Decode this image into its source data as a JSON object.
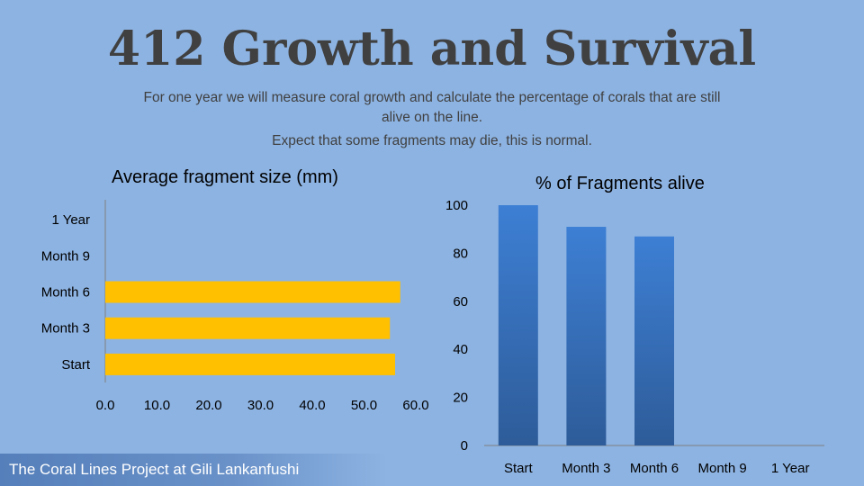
{
  "slide": {
    "title": "412 Growth and Survival",
    "subtitle": "For one year we will measure coral growth and calculate the percentage of corals that are still alive on the line.",
    "note": "Expect that some fragments may die, this is normal.",
    "footer": "The Coral Lines Project at Gili Lankanfushi"
  },
  "colors": {
    "background": "#8db3e2",
    "bar_size": "#ffc000",
    "bar_alive_top": "#3d7fd4",
    "bar_alive_bottom": "#2e5c99"
  },
  "chart_data": [
    {
      "type": "bar",
      "orientation": "horizontal",
      "title": "Average fragment size (mm)",
      "categories": [
        "Start",
        "Month 3",
        "Month 6",
        "Month 9",
        "1 Year"
      ],
      "values": [
        56,
        55,
        57,
        null,
        null
      ],
      "xlim": [
        0,
        60
      ],
      "xticks": [
        "0.0",
        "10.0",
        "20.0",
        "30.0",
        "40.0",
        "50.0",
        "60.0"
      ],
      "grid": false
    },
    {
      "type": "bar",
      "orientation": "vertical",
      "title": "% of Fragments alive",
      "categories": [
        "Start",
        "Month 3",
        "Month 6",
        "Month 9",
        "1 Year"
      ],
      "values": [
        100,
        91,
        87,
        null,
        null
      ],
      "ylim": [
        0,
        100
      ],
      "yticks": [
        "0",
        "20",
        "40",
        "60",
        "80",
        "100"
      ],
      "grid": false
    }
  ]
}
